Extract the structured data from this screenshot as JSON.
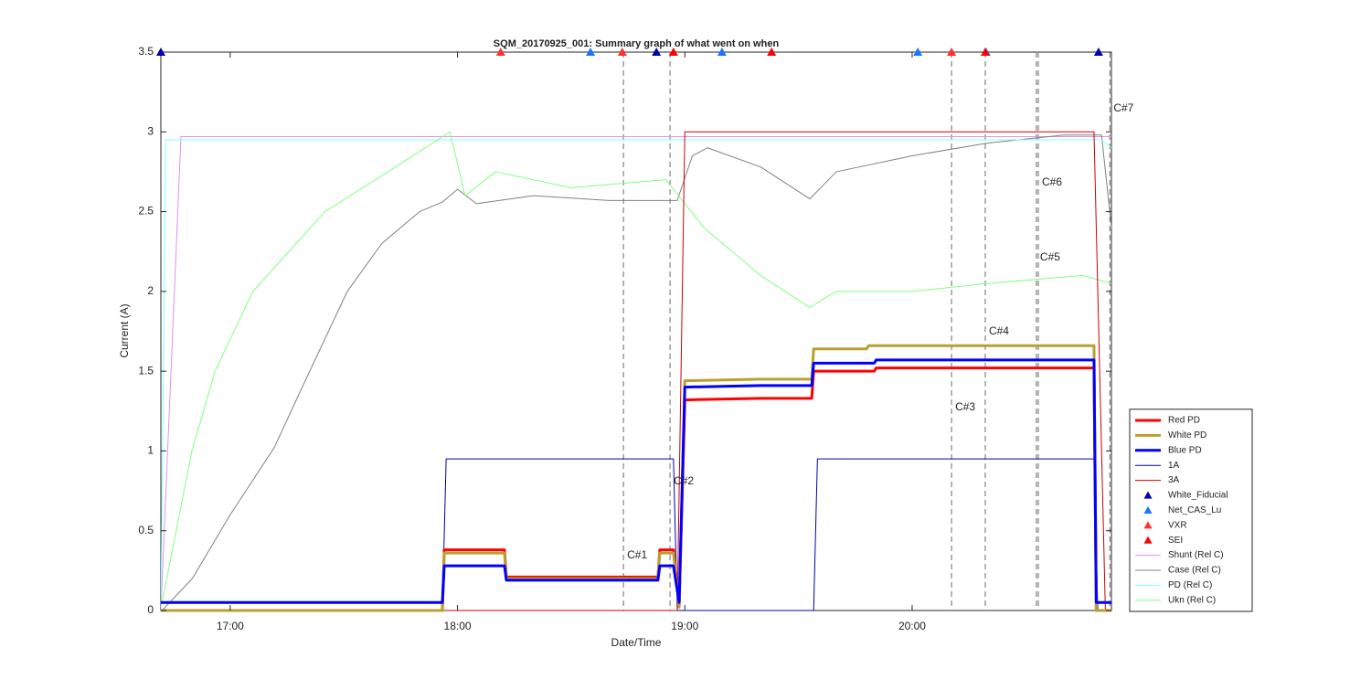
{
  "chart_data": {
    "type": "line",
    "title": "SQM_20170925_001: Summary graph of what went on when",
    "xlabel": "Date/Time",
    "ylabel": "Current (A)",
    "xlim": [
      1001.7,
      1252.6
    ],
    "ylim": [
      0,
      3.5
    ],
    "xticks": [
      {
        "value": 1020,
        "label": "17:00"
      },
      {
        "value": 1080,
        "label": "18:00"
      },
      {
        "value": 1140,
        "label": "19:00"
      },
      {
        "value": 1200,
        "label": "20:00"
      }
    ],
    "yticks": [
      0,
      0.5,
      1,
      1.5,
      2,
      2.5,
      3,
      3.5
    ],
    "legend": "lower right",
    "series": [
      {
        "name": "Red PD",
        "color": "#ff0000",
        "width": 3,
        "x": [
          1001.7,
          1076,
          1076.5,
          1092.4,
          1092.9,
          1132.9,
          1133.4,
          1137,
          1138.5,
          1140,
          1160,
          1173.5,
          1174,
          1190,
          1190.5,
          1248,
          1248.6,
          1252.6
        ],
        "values": [
          0,
          0,
          0.38,
          0.38,
          0.21,
          0.21,
          0.38,
          0.38,
          0.03,
          1.32,
          1.33,
          1.33,
          1.5,
          1.5,
          1.52,
          1.52,
          0,
          0
        ]
      },
      {
        "name": "White PD",
        "color": "#b8a030",
        "width": 3,
        "x": [
          1001.7,
          1076,
          1076.5,
          1092.4,
          1092.9,
          1132.9,
          1133.4,
          1137,
          1138.5,
          1140,
          1160,
          1173.5,
          1174,
          1188,
          1188.5,
          1248,
          1248.6,
          1252.6
        ],
        "values": [
          0,
          0,
          0.36,
          0.36,
          0.2,
          0.2,
          0.36,
          0.36,
          0.02,
          1.44,
          1.45,
          1.45,
          1.64,
          1.64,
          1.66,
          1.66,
          0,
          0
        ]
      },
      {
        "name": "Blue PD",
        "color": "#0000ff",
        "width": 3,
        "x": [
          1001.7,
          1076,
          1076.5,
          1092.4,
          1092.9,
          1132.9,
          1133.4,
          1137,
          1138.5,
          1140,
          1160,
          1173.5,
          1174,
          1190,
          1190.5,
          1248,
          1248.6,
          1252.6
        ],
        "values": [
          0.05,
          0.05,
          0.28,
          0.28,
          0.19,
          0.19,
          0.28,
          0.28,
          0.05,
          1.4,
          1.41,
          1.41,
          1.55,
          1.55,
          1.57,
          1.57,
          0.05,
          0.05
        ]
      },
      {
        "name": "1A",
        "color": "#0000aa",
        "width": 1,
        "x": [
          1001.7,
          1076,
          1077,
          1137,
          1138,
          1174,
          1175,
          1248,
          1249,
          1252.6
        ],
        "values": [
          0,
          0,
          0.95,
          0.95,
          0,
          0,
          0.95,
          0.95,
          0,
          0
        ]
      },
      {
        "name": "3A",
        "color": "#cc0000",
        "width": 1,
        "x": [
          1001.7,
          1138,
          1140,
          1248,
          1251,
          1252.6
        ],
        "values": [
          0,
          0,
          3,
          3,
          0,
          0
        ]
      },
      {
        "name": "White_Fiducial",
        "color": "#0000b0",
        "marker": "triangle",
        "x": [
          1001.7,
          1132.5,
          1249.2
        ],
        "values": [
          3.5,
          3.5,
          3.5
        ]
      },
      {
        "name": "Net_CAS_Lu",
        "color": "#1a75ff",
        "marker": "triangle",
        "x": [
          1115.1,
          1149.8,
          1201.5,
          1219.5
        ],
        "values": [
          3.5,
          3.5,
          3.5,
          3.5
        ]
      },
      {
        "name": "VXR",
        "color": "#ff3030",
        "marker": "triangle",
        "x": [
          1091.4,
          1123.5,
          1210.4
        ],
        "values": [
          3.5,
          3.5,
          3.5
        ]
      },
      {
        "name": "SEI",
        "color": "#ff0000",
        "marker": "triangle",
        "x": [
          1137,
          1162.9,
          1219.3
        ],
        "values": [
          3.5,
          3.5,
          3.5
        ]
      },
      {
        "name": "Shunt (Rel C)",
        "color": "#e090f0",
        "width": 1,
        "x": [
          1001.7,
          1007,
          1252.6
        ],
        "values": [
          0,
          2.97,
          2.97
        ]
      },
      {
        "name": "Case (Rel C)",
        "color": "#808080",
        "width": 1,
        "x": [
          1002,
          1010,
          1020,
          1031.6,
          1040,
          1050.9,
          1060,
          1070,
          1076,
          1080,
          1085,
          1100,
          1120,
          1138,
          1142,
          1146,
          1160,
          1173,
          1180,
          1200,
          1220,
          1240,
          1250,
          1252.6
        ],
        "values": [
          0,
          0.2,
          0.6,
          1.02,
          1.45,
          2,
          2.3,
          2.5,
          2.56,
          2.64,
          2.55,
          2.6,
          2.57,
          2.57,
          2.85,
          2.9,
          2.78,
          2.58,
          2.75,
          2.85,
          2.93,
          2.98,
          2.98,
          2.4
        ]
      },
      {
        "name": "PD (Rel C)",
        "color": "#80ffff",
        "width": 1,
        "x": [
          1001.7,
          1003,
          1250,
          1252.6
        ],
        "values": [
          0,
          2.95,
          2.95,
          2.9
        ]
      },
      {
        "name": "Ukn (Rel C)",
        "color": "#80ff80",
        "width": 1,
        "x": [
          1002,
          1009.9,
          1016,
          1026,
          1045,
          1065,
          1078,
          1082,
          1090,
          1110,
          1135,
          1145,
          1160,
          1173,
          1180,
          1200,
          1220,
          1245,
          1252.6
        ],
        "values": [
          0.05,
          1,
          1.5,
          2,
          2.5,
          2.8,
          3,
          2.6,
          2.75,
          2.65,
          2.7,
          2.4,
          2.1,
          1.9,
          2,
          2,
          2.05,
          2.1,
          2.05
        ]
      }
    ],
    "annotations": [
      {
        "text": "C#1",
        "x": 1123.8
      },
      {
        "text": "C#2",
        "x": 1136.1
      },
      {
        "text": "C#3",
        "x": 1210.4
      },
      {
        "text": "C#4",
        "x": 1219.3
      },
      {
        "text": "C#5",
        "x": 1232.8
      },
      {
        "text": "C#6",
        "x": 1233.3
      },
      {
        "text": "C#7",
        "x": 1252.2
      }
    ]
  }
}
